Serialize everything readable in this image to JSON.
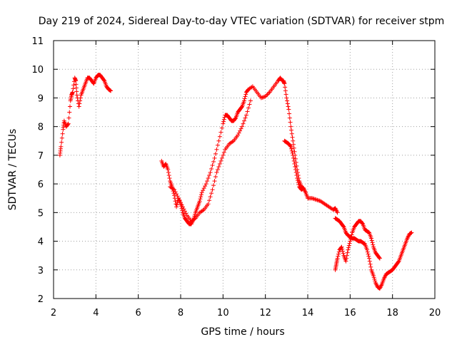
{
  "chart_data": {
    "type": "scatter",
    "title": "Day 219 of 2024, Sidereal Day-to-day VTEC variation (SDTVAR) for receiver stpm",
    "xlabel": "GPS time / hours",
    "ylabel": "SDTVAR / TECUs",
    "xlim": [
      2,
      20
    ],
    "ylim": [
      2,
      11
    ],
    "xticks": [
      2,
      4,
      6,
      8,
      10,
      12,
      14,
      16,
      18,
      20
    ],
    "yticks": [
      2,
      3,
      4,
      5,
      6,
      7,
      8,
      9,
      10,
      11
    ],
    "grid": true,
    "marker": "plus",
    "color": "#ff0000",
    "series": [
      {
        "name": "segment-1",
        "x": [
          2.3,
          2.35,
          2.45,
          2.5,
          2.6,
          2.7,
          2.8,
          2.85,
          2.9,
          3.0,
          3.05,
          3.1,
          3.2,
          3.3,
          3.4,
          3.5,
          3.6,
          3.7,
          3.8,
          3.9,
          4.0,
          4.1,
          4.2,
          4.3,
          4.4,
          4.5,
          4.6,
          4.7
        ],
        "y": [
          7.0,
          7.3,
          7.9,
          8.2,
          8.0,
          8.1,
          8.9,
          9.1,
          9.2,
          9.7,
          9.6,
          9.1,
          8.7,
          9.1,
          9.3,
          9.5,
          9.7,
          9.7,
          9.6,
          9.5,
          9.7,
          9.8,
          9.8,
          9.7,
          9.6,
          9.4,
          9.3,
          9.25
        ]
      },
      {
        "name": "segment-2a",
        "x": [
          7.1,
          7.2,
          7.3,
          7.4,
          7.5,
          7.6,
          7.7,
          7.8,
          7.9,
          8.0,
          8.1,
          8.2,
          8.3,
          8.4,
          8.5,
          8.6,
          8.7,
          8.8,
          8.9,
          9.0,
          9.2,
          9.4,
          9.6,
          9.8,
          10.0,
          10.1,
          10.2,
          10.3,
          10.4,
          10.5,
          10.6,
          10.7,
          10.8,
          10.9,
          11.0,
          11.1,
          11.2,
          11.4,
          11.6,
          11.8,
          12.0,
          12.2,
          12.4,
          12.6,
          12.7,
          12.8,
          12.85,
          12.9,
          13.0,
          13.1,
          13.2,
          13.3,
          13.4,
          13.5,
          13.6,
          13.7,
          13.8
        ],
        "y": [
          6.8,
          6.6,
          6.7,
          6.5,
          6.1,
          5.9,
          5.6,
          5.2,
          5.5,
          5.3,
          5.0,
          4.8,
          4.7,
          4.6,
          4.6,
          4.75,
          5.0,
          5.2,
          5.4,
          5.7,
          6.0,
          6.4,
          6.9,
          7.5,
          8.1,
          8.4,
          8.4,
          8.3,
          8.2,
          8.2,
          8.3,
          8.5,
          8.6,
          8.7,
          8.9,
          9.2,
          9.3,
          9.4,
          9.2,
          9.0,
          9.05,
          9.2,
          9.4,
          9.6,
          9.7,
          9.6,
          9.6,
          9.5,
          9.0,
          8.6,
          8.0,
          7.5,
          7.0,
          6.5,
          6.1,
          5.9,
          5.85
        ]
      },
      {
        "name": "segment-2b",
        "x": [
          7.5,
          7.7,
          7.9,
          8.1,
          8.3,
          8.5,
          8.7,
          8.9,
          9.1,
          9.3,
          9.5,
          9.7,
          9.9,
          10.1,
          10.3,
          10.5,
          10.7,
          10.9,
          11.1,
          11.3
        ],
        "y": [
          5.9,
          5.8,
          5.5,
          5.2,
          4.9,
          4.7,
          4.8,
          5.0,
          5.1,
          5.3,
          5.8,
          6.4,
          6.8,
          7.2,
          7.4,
          7.5,
          7.7,
          8.0,
          8.4,
          8.9
        ]
      },
      {
        "name": "segment-2c",
        "x": [
          12.9,
          13.0,
          13.1,
          13.2,
          13.3,
          13.4,
          13.5,
          13.6,
          13.7,
          13.8,
          13.9,
          14.0,
          14.2,
          14.4,
          14.6,
          14.8,
          15.0,
          15.2,
          15.3,
          15.4
        ],
        "y": [
          7.5,
          7.45,
          7.4,
          7.3,
          7.0,
          6.6,
          6.2,
          5.9,
          5.8,
          5.85,
          5.7,
          5.5,
          5.5,
          5.45,
          5.4,
          5.3,
          5.2,
          5.1,
          5.15,
          5.0
        ]
      },
      {
        "name": "segment-3",
        "x": [
          15.3,
          15.4,
          15.5,
          15.6,
          15.7,
          15.8,
          15.9,
          16.0,
          16.1,
          16.2,
          16.3,
          16.4,
          16.5,
          16.6,
          16.7,
          16.8,
          16.9,
          17.0,
          17.1,
          17.2,
          17.3,
          17.4,
          17.5,
          17.6,
          17.7,
          17.8,
          17.9,
          18.0,
          18.1,
          18.2,
          18.3,
          18.4,
          18.5,
          18.6,
          18.7,
          18.8,
          18.9
        ],
        "y": [
          4.8,
          4.75,
          4.7,
          4.6,
          4.5,
          4.3,
          4.2,
          4.15,
          4.1,
          4.1,
          4.05,
          4.0,
          4.0,
          3.95,
          3.9,
          3.7,
          3.4,
          3.0,
          2.8,
          2.55,
          2.4,
          2.35,
          2.5,
          2.7,
          2.85,
          2.9,
          2.95,
          3.0,
          3.1,
          3.2,
          3.3,
          3.5,
          3.7,
          3.9,
          4.1,
          4.25,
          4.3
        ]
      },
      {
        "name": "segment-3b",
        "x": [
          15.3,
          15.35,
          15.4,
          15.5,
          15.6,
          15.7,
          15.8,
          15.9,
          16.0,
          16.1,
          16.2,
          16.3,
          16.4,
          16.5,
          16.6,
          16.7,
          16.8,
          16.9,
          17.0,
          17.1,
          17.2,
          17.3,
          17.4
        ],
        "y": [
          3.0,
          3.2,
          3.4,
          3.7,
          3.8,
          3.5,
          3.3,
          3.7,
          4.0,
          4.3,
          4.5,
          4.6,
          4.7,
          4.7,
          4.6,
          4.4,
          4.35,
          4.3,
          4.1,
          3.8,
          3.6,
          3.5,
          3.4
        ]
      }
    ]
  }
}
